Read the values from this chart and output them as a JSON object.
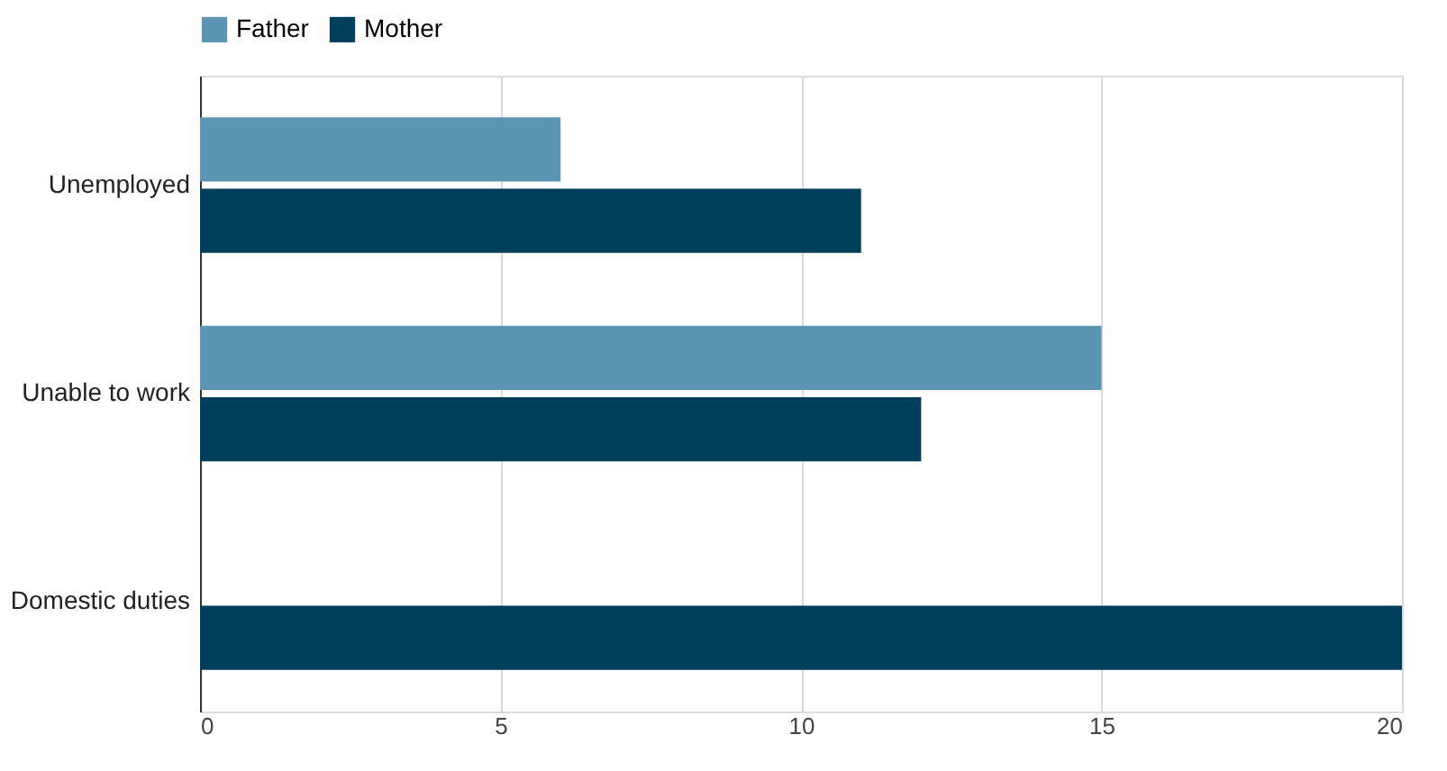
{
  "chart_data": {
    "type": "bar",
    "orientation": "horizontal",
    "categories": [
      "Unemployed",
      "Unable to work",
      "Domestic duties"
    ],
    "series": [
      {
        "name": "Father",
        "color": "#5b95b3",
        "values": [
          6,
          15,
          null
        ]
      },
      {
        "name": "Mother",
        "color": "#003f5c",
        "values": [
          11,
          12,
          20
        ]
      }
    ],
    "xlim": [
      0,
      20
    ],
    "xticks": [
      0,
      5,
      10,
      15,
      20
    ],
    "grid": "x",
    "legend": "top"
  }
}
